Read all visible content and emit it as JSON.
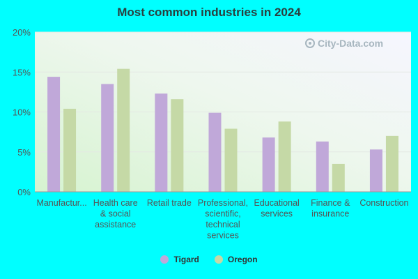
{
  "chart_data": {
    "type": "bar",
    "title": "Most common industries in 2024",
    "categories": [
      "Manufactur...",
      "Health care\n& social\nassistance",
      "Retail trade",
      "Professional,\nscientific,\ntechnical\nservices",
      "Educational\nservices",
      "Finance &\ninsurance",
      "Construction"
    ],
    "series": [
      {
        "name": "Tigard",
        "color": "#c0a8d9",
        "values": [
          14.4,
          13.5,
          12.3,
          9.9,
          6.8,
          6.3,
          5.3
        ]
      },
      {
        "name": "Oregon",
        "color": "#c5d9a6",
        "values": [
          10.4,
          15.4,
          11.6,
          7.9,
          8.8,
          3.5,
          7.0
        ]
      }
    ],
    "ylim": [
      0,
      20
    ],
    "yticks": [
      "0%",
      "5%",
      "10%",
      "15%",
      "20%"
    ],
    "ytick_values": [
      0,
      5,
      10,
      15,
      20
    ],
    "grid": true,
    "legend_position": "bottom"
  },
  "watermark": "City-Data.com"
}
